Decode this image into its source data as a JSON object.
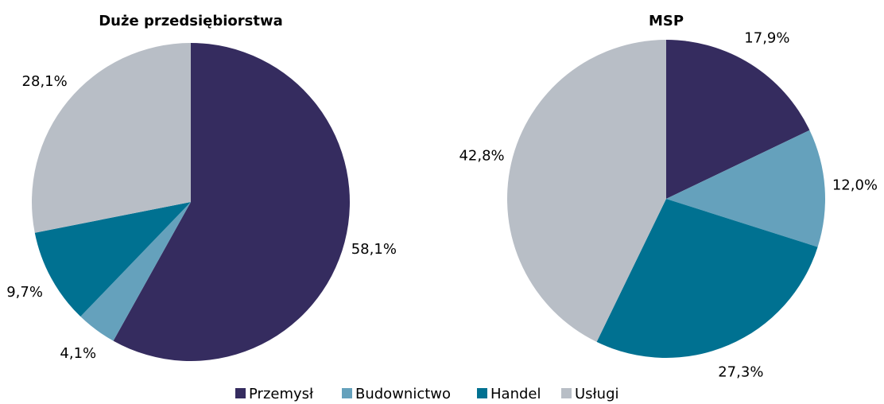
{
  "chart_data": [
    {
      "type": "pie",
      "title": "Duże przedsiębiorstwa",
      "categories": [
        "Przemysł",
        "Budownictwo",
        "Handel",
        "Usługi"
      ],
      "values": [
        58.1,
        4.1,
        9.7,
        28.1
      ],
      "value_labels": [
        "58,1%",
        "4,1%",
        "9,7%",
        "28,1%"
      ],
      "colors": [
        "#352c5f",
        "#65a1bc",
        "#007191",
        "#b8bec6"
      ],
      "legend": "bottom"
    },
    {
      "type": "pie",
      "title": "MSP",
      "categories": [
        "Przemysł",
        "Budownictwo",
        "Handel",
        "Usługi"
      ],
      "values": [
        17.9,
        12.0,
        27.3,
        42.8
      ],
      "value_labels": [
        "17,9%",
        "12,0%",
        "27,3%",
        "42,8%"
      ],
      "colors": [
        "#352c5f",
        "#65a1bc",
        "#007191",
        "#b8bec6"
      ],
      "legend": "bottom"
    }
  ]
}
